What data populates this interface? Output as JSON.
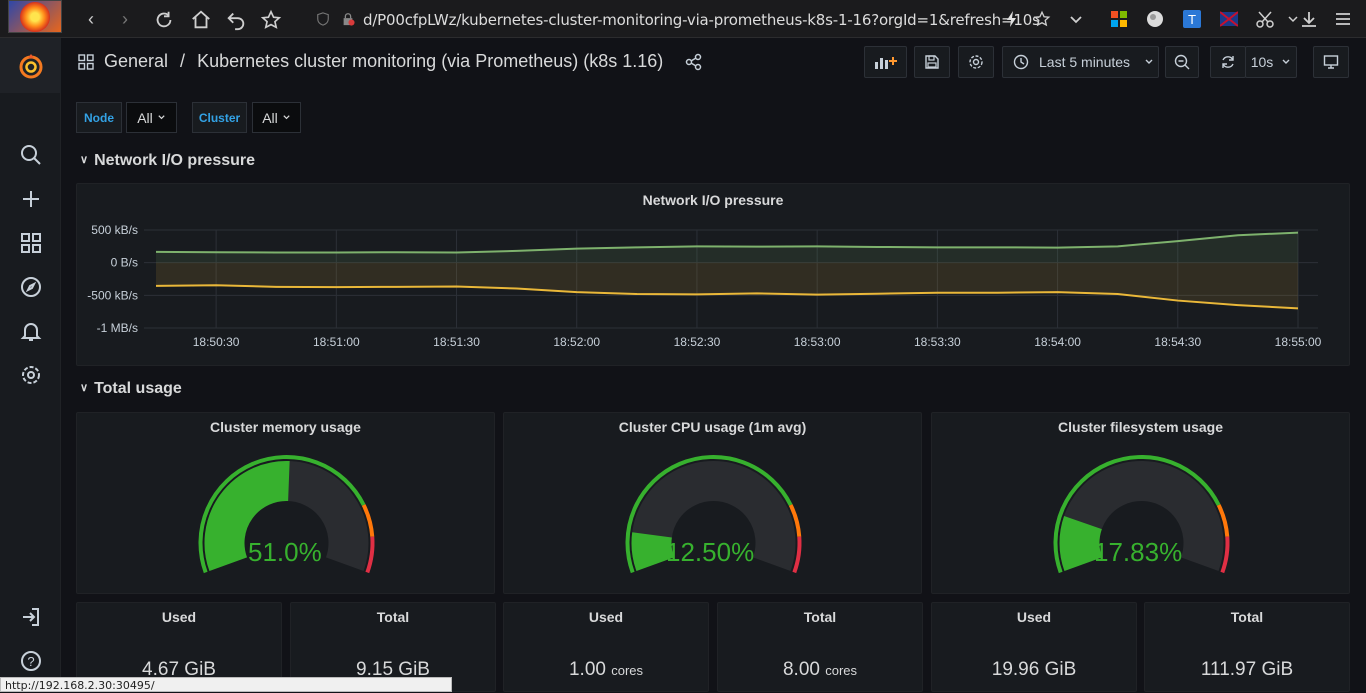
{
  "browser": {
    "url": "d/P00cfpLWz/kubernetes-cluster-monitoring-via-prometheus-k8s-1-16?orgId=1&refresh=10s",
    "status_url": "http://192.168.2.30:30495/"
  },
  "header": {
    "folder": "General",
    "separator": "/",
    "dashboard_title": "Kubernetes cluster monitoring (via Prometheus) (k8s 1.16)",
    "time_range": "Last 5 minutes",
    "refresh": "10s"
  },
  "variables": [
    {
      "label": "Node",
      "value": "All"
    },
    {
      "label": "Cluster",
      "value": "All"
    }
  ],
  "rows": {
    "network": "Network I/O pressure",
    "total": "Total usage"
  },
  "network_panel": {
    "title": "Network I/O pressure"
  },
  "chart_data": {
    "type": "area",
    "title": "Network I/O pressure",
    "y_ticks": [
      "500 kB/s",
      "0 B/s",
      "-500 kB/s",
      "-1 MB/s"
    ],
    "ylim": [
      -1000,
      500
    ],
    "x_ticks": [
      "18:50:30",
      "18:51:00",
      "18:51:30",
      "18:52:00",
      "18:52:30",
      "18:53:00",
      "18:53:30",
      "18:54:00",
      "18:54:30",
      "18:55:00"
    ],
    "x": [
      "18:50:15",
      "18:50:30",
      "18:50:45",
      "18:51:00",
      "18:51:15",
      "18:51:30",
      "18:51:45",
      "18:52:00",
      "18:52:15",
      "18:52:30",
      "18:52:45",
      "18:53:00",
      "18:53:15",
      "18:53:30",
      "18:53:45",
      "18:54:00",
      "18:54:15",
      "18:54:30",
      "18:54:45",
      "18:55:00"
    ],
    "series": [
      {
        "color": "#7eb26d",
        "values": [
          165,
          160,
          155,
          155,
          160,
          155,
          180,
          215,
          235,
          250,
          245,
          250,
          240,
          235,
          235,
          230,
          250,
          330,
          420,
          460
        ]
      },
      {
        "color": "#eab839",
        "values": [
          -355,
          -345,
          -370,
          -375,
          -370,
          -365,
          -395,
          -450,
          -480,
          -485,
          -470,
          -490,
          -475,
          -460,
          -460,
          -450,
          -480,
          -580,
          -650,
          -700
        ]
      }
    ],
    "grid": true
  },
  "gauges": [
    {
      "title": "Cluster memory usage",
      "value_text": "51.0%",
      "value": 51.0
    },
    {
      "title": "Cluster CPU usage (1m avg)",
      "value_text": "12.50%",
      "value": 12.5
    },
    {
      "title": "Cluster filesystem usage",
      "value_text": "17.83%",
      "value": 17.83
    }
  ],
  "stats": [
    {
      "title": "Used",
      "value": "4.67 GiB",
      "unit": ""
    },
    {
      "title": "Total",
      "value": "9.15 GiB",
      "unit": ""
    },
    {
      "title": "Used",
      "value": "1.00",
      "unit": "cores"
    },
    {
      "title": "Total",
      "value": "8.00",
      "unit": "cores"
    },
    {
      "title": "Used",
      "value": "19.96 GiB",
      "unit": ""
    },
    {
      "title": "Total",
      "value": "111.97 GiB",
      "unit": ""
    }
  ]
}
